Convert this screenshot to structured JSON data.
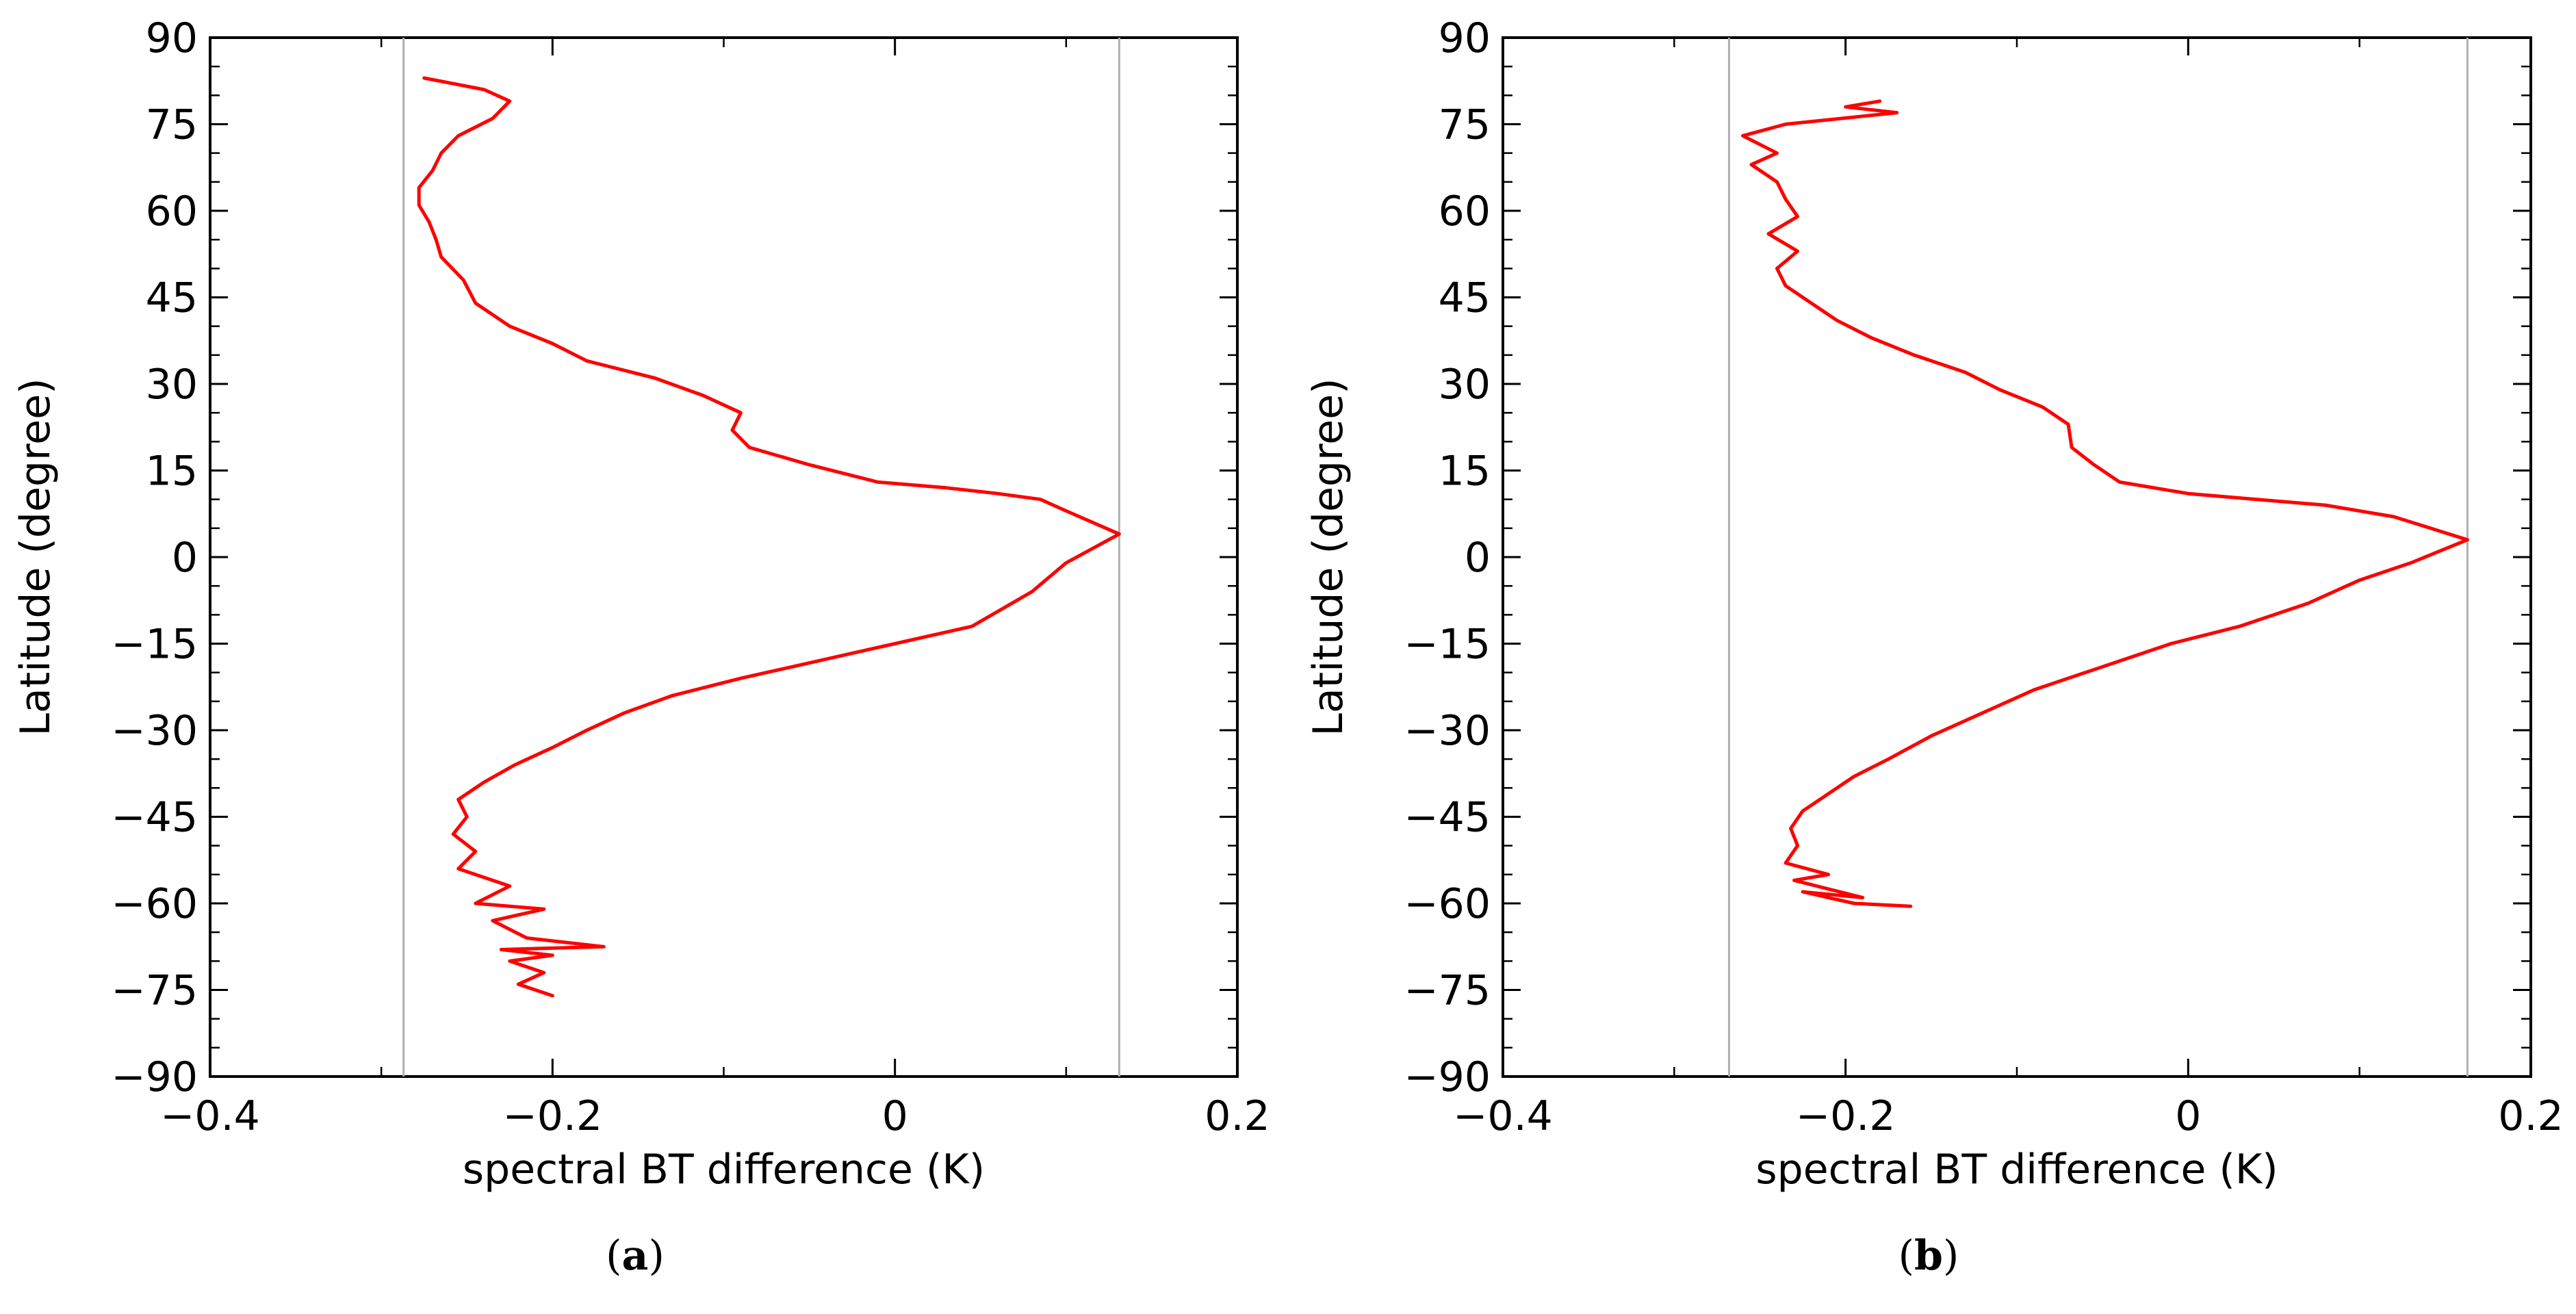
{
  "chart_data": [
    {
      "type": "line",
      "panel_label": "(a)",
      "xlabel": "spectral BT difference (K)",
      "ylabel": "Latitude (degree)",
      "xlim": [
        -0.4,
        0.2
      ],
      "ylim": [
        -90,
        90
      ],
      "x_ticks": [
        -0.4,
        -0.2,
        0,
        0.2
      ],
      "x_tick_labels": [
        "−0.4",
        "−0.2",
        "0",
        "0.2"
      ],
      "y_ticks": [
        -90,
        -75,
        -60,
        -45,
        -30,
        -15,
        0,
        15,
        30,
        45,
        60,
        75,
        90
      ],
      "y_tick_labels": [
        "−90",
        "−75",
        "−60",
        "−45",
        "−30",
        "−15",
        "0",
        "15",
        "30",
        "45",
        "60",
        "75",
        "90"
      ],
      "reference_lines_x": [
        -0.287,
        0.131
      ],
      "line_color": "#ff0000",
      "reference_line_color": "#b0b0b0",
      "series": [
        {
          "name": "BT difference",
          "x": [
            -0.2,
            -0.22,
            -0.205,
            -0.225,
            -0.2,
            -0.23,
            -0.17,
            -0.215,
            -0.235,
            -0.205,
            -0.245,
            -0.225,
            -0.255,
            -0.245,
            -0.258,
            -0.25,
            -0.255,
            -0.24,
            -0.222,
            -0.2,
            -0.18,
            -0.158,
            -0.13,
            -0.09,
            -0.045,
            0.0,
            0.045,
            0.08,
            0.1,
            0.131,
            0.1,
            0.085,
            0.06,
            0.03,
            -0.01,
            -0.05,
            -0.085,
            -0.095,
            -0.09,
            -0.112,
            -0.14,
            -0.18,
            -0.2,
            -0.225,
            -0.245,
            -0.252,
            -0.265,
            -0.268,
            -0.272,
            -0.278,
            -0.278,
            -0.27,
            -0.265,
            -0.255,
            -0.235,
            -0.225,
            -0.24,
            -0.275
          ],
          "y": [
            -76,
            -74,
            -72,
            -70,
            -69,
            -68,
            -67.5,
            -66,
            -63,
            -61,
            -60,
            -57,
            -54,
            -51,
            -48,
            -45,
            -42,
            -39,
            -36,
            -33,
            -30,
            -27,
            -24,
            -21,
            -18,
            -15,
            -12,
            -6,
            -1,
            4,
            8,
            10,
            11,
            12,
            13,
            16,
            19,
            22,
            25,
            28,
            31,
            34,
            37,
            40,
            44,
            48,
            52,
            55,
            58,
            61,
            64,
            67,
            70,
            73,
            76,
            79,
            81,
            83
          ]
        }
      ]
    },
    {
      "type": "line",
      "panel_label": "(b)",
      "xlabel": "spectral BT difference (K)",
      "ylabel": "Latitude (degree)",
      "xlim": [
        -0.4,
        0.2
      ],
      "ylim": [
        -90,
        90
      ],
      "x_ticks": [
        -0.4,
        -0.2,
        0,
        0.2
      ],
      "x_tick_labels": [
        "−0.4",
        "−0.2",
        "0",
        "0.2"
      ],
      "y_ticks": [
        -90,
        -75,
        -60,
        -45,
        -30,
        -15,
        0,
        15,
        30,
        45,
        60,
        75,
        90
      ],
      "y_tick_labels": [
        "−90",
        "−75",
        "−60",
        "−45",
        "−30",
        "−15",
        "0",
        "15",
        "30",
        "45",
        "60",
        "75",
        "90"
      ],
      "reference_lines_x": [
        -0.268,
        0.163
      ],
      "line_color": "#ff0000",
      "reference_line_color": "#b0b0b0",
      "series": [
        {
          "name": "BT difference",
          "x": [
            -0.162,
            -0.195,
            -0.225,
            -0.19,
            -0.23,
            -0.21,
            -0.235,
            -0.228,
            -0.232,
            -0.225,
            -0.21,
            -0.195,
            -0.175,
            -0.15,
            -0.12,
            -0.09,
            -0.05,
            -0.01,
            0.03,
            0.07,
            0.1,
            0.13,
            0.163,
            0.12,
            0.08,
            0.04,
            0.0,
            -0.04,
            -0.055,
            -0.068,
            -0.07,
            -0.085,
            -0.11,
            -0.13,
            -0.16,
            -0.185,
            -0.205,
            -0.22,
            -0.235,
            -0.24,
            -0.228,
            -0.245,
            -0.228,
            -0.235,
            -0.24,
            -0.255,
            -0.24,
            -0.26,
            -0.235,
            -0.17,
            -0.2,
            -0.18
          ],
          "y": [
            -60.5,
            -60,
            -58,
            -59,
            -56,
            -55,
            -53,
            -50,
            -47,
            -44,
            -41,
            -38,
            -35,
            -31,
            -27,
            -23,
            -19,
            -15,
            -12,
            -8,
            -4,
            -1,
            3,
            7,
            9,
            10,
            11,
            13,
            16,
            19,
            23,
            26,
            29,
            32,
            35,
            38,
            41,
            44,
            47,
            50,
            53,
            56,
            59,
            62,
            65,
            68,
            70,
            73,
            75,
            77,
            78,
            79
          ]
        }
      ]
    }
  ]
}
